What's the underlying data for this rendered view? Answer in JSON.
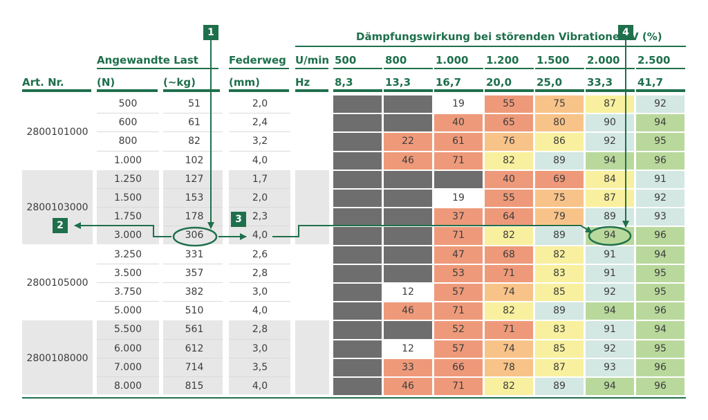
{
  "header": {
    "title": "Dämpfungswirkung bei störenden Vibrationen V (%)",
    "group_load": "Angewandte Last",
    "federweg": "Federweg",
    "umin": "U/min",
    "art_nr": "Art. Nr.",
    "n": "(N)",
    "kg": "(~kg)",
    "mm": "(mm)",
    "hz": "Hz"
  },
  "rpm": [
    "500",
    "800",
    "1.000",
    "1.200",
    "1.500",
    "2.000",
    "2.500"
  ],
  "hz_values": [
    "8,3",
    "13,3",
    "16,7",
    "20,0",
    "25,0",
    "33,3",
    "41,7"
  ],
  "groups": [
    {
      "art": "2800101000",
      "shaded": false,
      "rows": [
        {
          "n": "500",
          "kg": "51",
          "mm": "2,0",
          "v": [
            null,
            null,
            "19",
            "55",
            "75",
            "87",
            "92"
          ]
        },
        {
          "n": "600",
          "kg": "61",
          "mm": "2,4",
          "v": [
            null,
            null,
            "40",
            "65",
            "80",
            "90",
            "94"
          ]
        },
        {
          "n": "800",
          "kg": "82",
          "mm": "3,2",
          "v": [
            null,
            "22",
            "61",
            "76",
            "86",
            "92",
            "95"
          ]
        },
        {
          "n": "1.000",
          "kg": "102",
          "mm": "4,0",
          "v": [
            null,
            "46",
            "71",
            "82",
            "89",
            "94",
            "96"
          ]
        }
      ]
    },
    {
      "art": "2800103000",
      "shaded": true,
      "rows": [
        {
          "n": "1.250",
          "kg": "127",
          "mm": "1,7",
          "v": [
            null,
            null,
            null,
            "40",
            "69",
            "84",
            "91"
          ]
        },
        {
          "n": "1.500",
          "kg": "153",
          "mm": "2,0",
          "v": [
            null,
            null,
            "19",
            "55",
            "75",
            "87",
            "92"
          ]
        },
        {
          "n": "1.750",
          "kg": "178",
          "mm": "2,3",
          "v": [
            null,
            null,
            "37",
            "64",
            "79",
            "89",
            "93"
          ]
        },
        {
          "n": "3.000",
          "kg": "306",
          "mm": "4,0",
          "v": [
            null,
            null,
            "71",
            "82",
            "89",
            "94",
            "96"
          ]
        }
      ]
    },
    {
      "art": "2800105000",
      "shaded": false,
      "rows": [
        {
          "n": "3.250",
          "kg": "331",
          "mm": "2,6",
          "v": [
            null,
            null,
            "47",
            "68",
            "82",
            "91",
            "94"
          ]
        },
        {
          "n": "3.500",
          "kg": "357",
          "mm": "2,8",
          "v": [
            null,
            null,
            "53",
            "71",
            "83",
            "91",
            "95"
          ]
        },
        {
          "n": "3.750",
          "kg": "382",
          "mm": "3,0",
          "v": [
            null,
            "12",
            "57",
            "74",
            "85",
            "92",
            "95"
          ]
        },
        {
          "n": "5.000",
          "kg": "510",
          "mm": "4,0",
          "v": [
            null,
            "46",
            "71",
            "82",
            "89",
            "94",
            "96"
          ]
        }
      ]
    },
    {
      "art": "2800108000",
      "shaded": true,
      "rows": [
        {
          "n": "5.500",
          "kg": "561",
          "mm": "2,8",
          "v": [
            null,
            null,
            "52",
            "71",
            "83",
            "91",
            "94"
          ]
        },
        {
          "n": "6.000",
          "kg": "612",
          "mm": "3,0",
          "v": [
            null,
            "12",
            "57",
            "74",
            "85",
            "92",
            "95"
          ]
        },
        {
          "n": "7.000",
          "kg": "714",
          "mm": "3,5",
          "v": [
            null,
            "33",
            "66",
            "78",
            "87",
            "93",
            "96"
          ]
        },
        {
          "n": "8.000",
          "kg": "815",
          "mm": "4,0",
          "v": [
            null,
            "46",
            "71",
            "82",
            "89",
            "94",
            "96"
          ]
        }
      ]
    }
  ],
  "badges": [
    "1",
    "2",
    "3",
    "4"
  ],
  "colors": {
    "green": "#1e6f4c",
    "gray_cell": "#6e6e6e",
    "white_cell": "#ffffff",
    "salmon": "#ee9a7a",
    "orange": "#f8c389",
    "yellow": "#f8f09e",
    "lightblue": "#d3e7e3",
    "lightgreen": "#b9d99c",
    "row_shade": "#e7e7e7"
  }
}
